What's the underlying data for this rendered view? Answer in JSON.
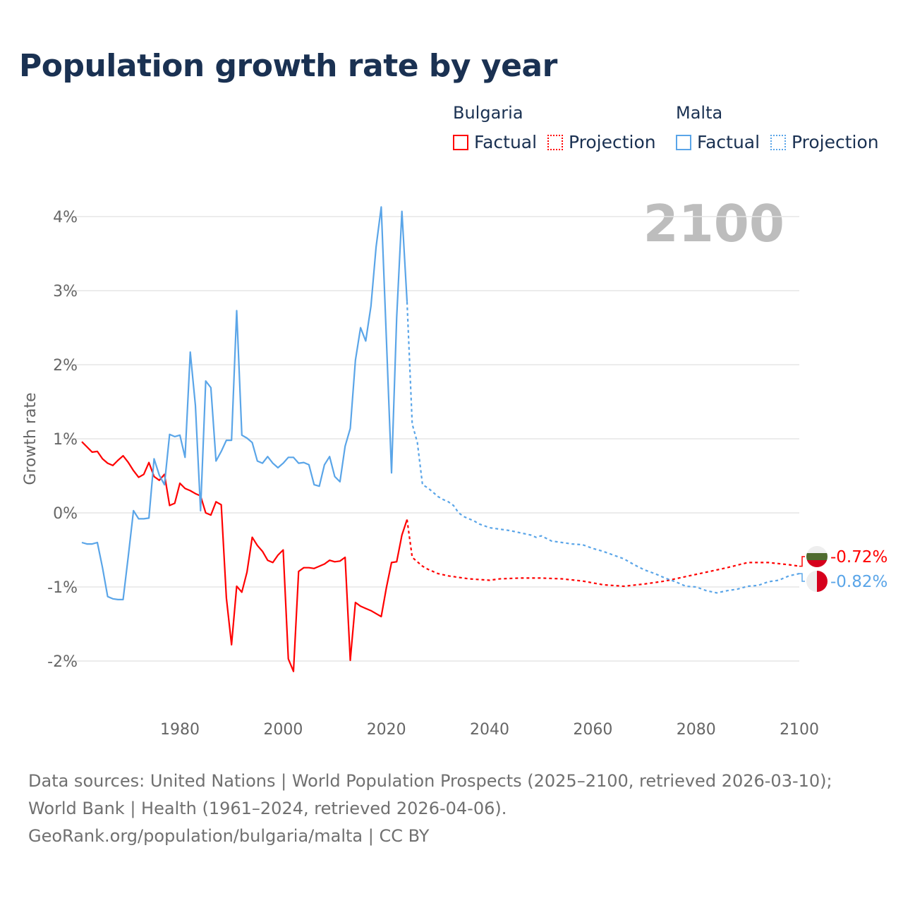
{
  "title": "Population growth rate by year",
  "legend": {
    "groups": [
      {
        "name": "Bulgaria",
        "factual": "Factual",
        "projection": "Projection",
        "color": "#ff0000"
      },
      {
        "name": "Malta",
        "factual": "Factual",
        "projection": "Projection",
        "color": "#5aa5e8"
      }
    ]
  },
  "current_year_label": "2100",
  "footer": {
    "sources": "Data sources: United Nations | World Population Prospects (2025–2100, retrieved 2026-03-10); World Bank | Health (1961–2024, retrieved 2026-04-06).",
    "url": "GeoRank.org/population/bulgaria/malta | CC BY"
  },
  "chart_data": {
    "type": "line",
    "title": "Population growth rate by year",
    "xlabel": "",
    "ylabel": "Growth rate",
    "xlim": [
      1961,
      2100
    ],
    "ylim": [
      -2.6,
      4.4
    ],
    "x_ticks": [
      1980,
      2000,
      2020,
      2040,
      2060,
      2080,
      2100
    ],
    "x_tick_labels": [
      "1980",
      "2000",
      "2020",
      "2040",
      "2060",
      "2080",
      "2100"
    ],
    "y_ticks": [
      -2,
      -1,
      0,
      1,
      2,
      3,
      4
    ],
    "y_tick_labels": [
      "-2%",
      "-1%",
      "0%",
      "1%",
      "2%",
      "3%",
      "4%"
    ],
    "grid": true,
    "legend_position": "top-right",
    "series": [
      {
        "name": "Bulgaria Factual",
        "color": "#ff0000",
        "dash": false,
        "x": [
          1961,
          1962,
          1963,
          1964,
          1965,
          1966,
          1967,
          1968,
          1969,
          1970,
          1971,
          1972,
          1973,
          1974,
          1975,
          1976,
          1977,
          1978,
          1979,
          1980,
          1981,
          1982,
          1983,
          1984,
          1985,
          1986,
          1987,
          1988,
          1989,
          1990,
          1991,
          1992,
          1993,
          1994,
          1995,
          1996,
          1997,
          1998,
          1999,
          2000,
          2001,
          2002,
          2003,
          2004,
          2005,
          2006,
          2007,
          2008,
          2009,
          2010,
          2011,
          2012,
          2013,
          2014,
          2015,
          2016,
          2017,
          2018,
          2019,
          2020,
          2021,
          2022,
          2023,
          2024
        ],
        "y": [
          0.96,
          0.89,
          0.82,
          0.83,
          0.73,
          0.67,
          0.64,
          0.71,
          0.77,
          0.68,
          0.57,
          0.48,
          0.52,
          0.68,
          0.49,
          0.44,
          0.52,
          0.1,
          0.13,
          0.4,
          0.33,
          0.3,
          0.26,
          0.23,
          0.0,
          -0.03,
          0.15,
          0.11,
          -1.15,
          -1.78,
          -0.99,
          -1.07,
          -0.8,
          -0.33,
          -0.44,
          -0.52,
          -0.64,
          -0.67,
          -0.57,
          -0.5,
          -1.97,
          -2.14,
          -0.79,
          -0.74,
          -0.74,
          -0.75,
          -0.72,
          -0.69,
          -0.64,
          -0.66,
          -0.65,
          -0.6,
          -1.99,
          -1.21,
          -1.26,
          -1.29,
          -1.32,
          -1.36,
          -1.4,
          -1.01,
          -0.67,
          -0.66,
          -0.3,
          -0.09
        ]
      },
      {
        "name": "Bulgaria Projection",
        "color": "#ff0000",
        "dash": true,
        "x": [
          2024,
          2025,
          2026,
          2027,
          2028,
          2030,
          2032,
          2034,
          2036,
          2038,
          2040,
          2042,
          2046,
          2050,
          2054,
          2058,
          2062,
          2066,
          2070,
          2074,
          2078,
          2082,
          2086,
          2090,
          2094,
          2098,
          2100
        ],
        "y": [
          -0.09,
          -0.6,
          -0.66,
          -0.72,
          -0.76,
          -0.82,
          -0.85,
          -0.87,
          -0.89,
          -0.9,
          -0.91,
          -0.89,
          -0.88,
          -0.88,
          -0.89,
          -0.92,
          -0.97,
          -0.99,
          -0.96,
          -0.92,
          -0.86,
          -0.8,
          -0.74,
          -0.67,
          -0.67,
          -0.7,
          -0.72
        ]
      },
      {
        "name": "Malta Factual",
        "color": "#5aa5e8",
        "dash": false,
        "x": [
          1961,
          1962,
          1963,
          1964,
          1965,
          1966,
          1967,
          1968,
          1969,
          1970,
          1971,
          1972,
          1973,
          1974,
          1975,
          1976,
          1977,
          1978,
          1979,
          1980,
          1981,
          1982,
          1983,
          1984,
          1985,
          1986,
          1987,
          1988,
          1989,
          1990,
          1991,
          1992,
          1993,
          1994,
          1995,
          1996,
          1997,
          1998,
          1999,
          2000,
          2001,
          2002,
          2003,
          2004,
          2005,
          2006,
          2007,
          2008,
          2009,
          2010,
          2011,
          2012,
          2013,
          2014,
          2015,
          2016,
          2017,
          2018,
          2019,
          2020,
          2021,
          2022,
          2023,
          2024
        ],
        "y": [
          -0.4,
          -0.42,
          -0.42,
          -0.4,
          -0.74,
          -1.13,
          -1.16,
          -1.17,
          -1.17,
          -0.58,
          0.03,
          -0.08,
          -0.08,
          -0.07,
          0.73,
          0.51,
          0.38,
          1.06,
          1.03,
          1.05,
          0.75,
          2.17,
          1.45,
          0.03,
          1.78,
          1.69,
          0.7,
          0.83,
          0.98,
          0.98,
          2.73,
          1.05,
          1.01,
          0.95,
          0.7,
          0.67,
          0.76,
          0.67,
          0.61,
          0.67,
          0.75,
          0.75,
          0.67,
          0.68,
          0.65,
          0.38,
          0.36,
          0.65,
          0.76,
          0.49,
          0.42,
          0.9,
          1.14,
          2.06,
          2.5,
          2.32,
          2.79,
          3.59,
          4.13,
          2.35,
          0.54,
          2.64,
          4.07,
          2.85
        ]
      },
      {
        "name": "Malta Projection",
        "color": "#5aa5e8",
        "dash": true,
        "x": [
          2024,
          2025,
          2026,
          2027,
          2028,
          2029,
          2030,
          2031,
          2032,
          2033,
          2034,
          2035,
          2036,
          2037,
          2038,
          2040,
          2044,
          2048,
          2049,
          2050,
          2052,
          2054,
          2056,
          2058,
          2060,
          2062,
          2064,
          2066,
          2068,
          2070,
          2072,
          2074,
          2076,
          2078,
          2080,
          2082,
          2084,
          2086,
          2088,
          2090,
          2092,
          2094,
          2096,
          2098,
          2100
        ],
        "y": [
          2.85,
          1.2,
          0.95,
          0.38,
          0.34,
          0.28,
          0.22,
          0.18,
          0.15,
          0.1,
          0.0,
          -0.05,
          -0.08,
          -0.11,
          -0.15,
          -0.2,
          -0.24,
          -0.3,
          -0.33,
          -0.31,
          -0.38,
          -0.4,
          -0.42,
          -0.43,
          -0.48,
          -0.52,
          -0.57,
          -0.62,
          -0.7,
          -0.77,
          -0.82,
          -0.88,
          -0.93,
          -0.99,
          -1.0,
          -1.05,
          -1.08,
          -1.05,
          -1.03,
          -0.99,
          -0.98,
          -0.93,
          -0.91,
          -0.85,
          -0.82
        ]
      }
    ],
    "end_labels": [
      {
        "country": "Bulgaria",
        "text": "-0.72%",
        "color": "#ff0000"
      },
      {
        "country": "Malta",
        "text": "-0.82%",
        "color": "#5aa5e8"
      }
    ]
  }
}
